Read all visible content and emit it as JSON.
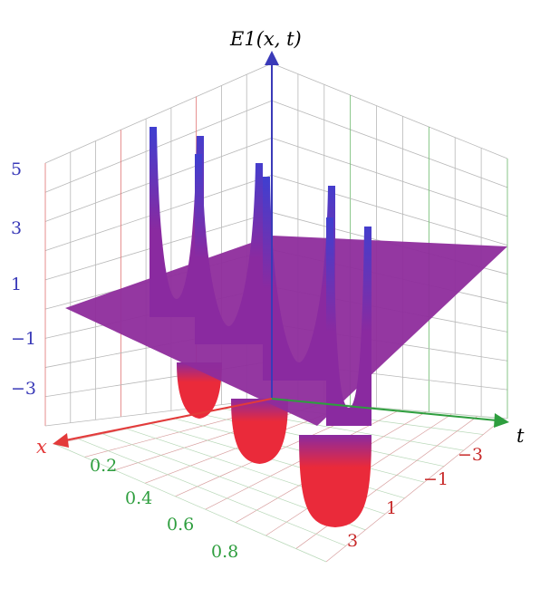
{
  "chart_data": {
    "type": "surface",
    "title": "",
    "function_label": "E1(x, t)",
    "x_axis": {
      "label": "x",
      "ticks": [
        "0.2",
        "0.4",
        "0.6",
        "0.8"
      ],
      "range": [
        0,
        1
      ]
    },
    "t_axis": {
      "label": "t",
      "ticks": [
        "−3",
        "−1",
        "1",
        "3"
      ],
      "range": [
        -4,
        4
      ]
    },
    "z_axis": {
      "ticks": [
        "5",
        "3",
        "1",
        "−1",
        "−3"
      ],
      "range": [
        -4,
        6
      ]
    },
    "baseline_value": 0,
    "grid": true,
    "colors": {
      "surface_top": "#3f3fd0",
      "surface_mid": "#8a2aa0",
      "surface_bottom": "#ea2a3a",
      "z_axis": "#3a3ab8",
      "x_axis": "#e33a3a",
      "t_axis": "#2e9e3e",
      "x_ticks": "#2e9e3e",
      "t_ticks": "#c82a2a",
      "z_ticks": "#3a3ab8"
    }
  }
}
